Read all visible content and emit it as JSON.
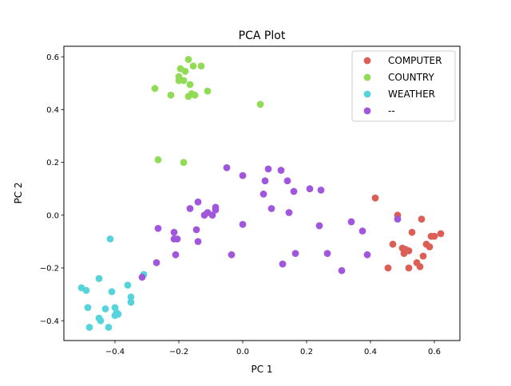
{
  "chart_data": {
    "type": "scatter",
    "title": "PCA Plot",
    "xlabel": "PC 1",
    "ylabel": "PC 2",
    "xlim": [
      -0.56,
      0.68
    ],
    "ylim": [
      -0.475,
      0.64
    ],
    "xticks": [
      -0.4,
      -0.2,
      0.0,
      0.2,
      0.4,
      0.6
    ],
    "xtick_labels": [
      "−0.4",
      "−0.2",
      "0.0",
      "0.2",
      "0.4",
      "0.6"
    ],
    "yticks": [
      -0.4,
      -0.2,
      0.0,
      0.2,
      0.4,
      0.6
    ],
    "ytick_labels": [
      "−0.4",
      "−0.2",
      "0.0",
      "0.2",
      "0.4",
      "0.6"
    ],
    "grid": false,
    "legend_position": "top-right",
    "series": [
      {
        "name": "COMPUTER",
        "color": "#db5f57",
        "points": [
          [
            0.415,
            0.065
          ],
          [
            0.485,
            0.0
          ],
          [
            0.56,
            -0.015
          ],
          [
            0.47,
            -0.11
          ],
          [
            0.5,
            -0.125
          ],
          [
            0.505,
            -0.145
          ],
          [
            0.52,
            -0.135
          ],
          [
            0.53,
            -0.065
          ],
          [
            0.575,
            -0.11
          ],
          [
            0.585,
            -0.12
          ],
          [
            0.59,
            -0.08
          ],
          [
            0.6,
            -0.08
          ],
          [
            0.62,
            -0.07
          ],
          [
            0.565,
            -0.155
          ],
          [
            0.545,
            -0.18
          ],
          [
            0.555,
            -0.195
          ],
          [
            0.52,
            -0.2
          ],
          [
            0.455,
            -0.2
          ],
          [
            0.51,
            -0.13
          ]
        ]
      },
      {
        "name": "COUNTRY",
        "color": "#91db57",
        "points": [
          [
            -0.17,
            0.59
          ],
          [
            -0.155,
            0.565
          ],
          [
            -0.13,
            0.565
          ],
          [
            -0.195,
            0.555
          ],
          [
            -0.18,
            0.545
          ],
          [
            -0.2,
            0.525
          ],
          [
            -0.2,
            0.51
          ],
          [
            -0.185,
            0.51
          ],
          [
            -0.165,
            0.495
          ],
          [
            -0.275,
            0.48
          ],
          [
            -0.11,
            0.47
          ],
          [
            -0.16,
            0.46
          ],
          [
            -0.15,
            0.455
          ],
          [
            -0.17,
            0.45
          ],
          [
            -0.225,
            0.455
          ],
          [
            0.055,
            0.42
          ],
          [
            -0.265,
            0.21
          ],
          [
            -0.185,
            0.2
          ]
        ]
      },
      {
        "name": "WEATHER",
        "color": "#57d3db",
        "points": [
          [
            -0.415,
            -0.09
          ],
          [
            -0.31,
            -0.225
          ],
          [
            -0.45,
            -0.24
          ],
          [
            -0.36,
            -0.265
          ],
          [
            -0.505,
            -0.275
          ],
          [
            -0.49,
            -0.285
          ],
          [
            -0.41,
            -0.29
          ],
          [
            -0.35,
            -0.31
          ],
          [
            -0.35,
            -0.33
          ],
          [
            -0.485,
            -0.35
          ],
          [
            -0.43,
            -0.355
          ],
          [
            -0.4,
            -0.35
          ],
          [
            -0.395,
            -0.37
          ],
          [
            -0.39,
            -0.375
          ],
          [
            -0.4,
            -0.38
          ],
          [
            -0.45,
            -0.39
          ],
          [
            -0.445,
            -0.4
          ],
          [
            -0.48,
            -0.425
          ],
          [
            -0.42,
            -0.425
          ]
        ]
      },
      {
        "name": "--",
        "color": "#a157db",
        "points": [
          [
            -0.05,
            0.18
          ],
          [
            0.0,
            0.15
          ],
          [
            0.08,
            0.175
          ],
          [
            0.12,
            0.17
          ],
          [
            0.07,
            0.13
          ],
          [
            0.14,
            0.13
          ],
          [
            0.21,
            0.1
          ],
          [
            0.245,
            0.095
          ],
          [
            0.16,
            0.09
          ],
          [
            0.065,
            0.08
          ],
          [
            -0.14,
            0.05
          ],
          [
            -0.085,
            0.03
          ],
          [
            -0.165,
            0.025
          ],
          [
            0.09,
            0.025
          ],
          [
            -0.085,
            0.02
          ],
          [
            -0.11,
            0.01
          ],
          [
            -0.095,
            0.0
          ],
          [
            -0.12,
            0.0
          ],
          [
            0.145,
            0.01
          ],
          [
            0.34,
            -0.025
          ],
          [
            0.0,
            -0.035
          ],
          [
            0.24,
            -0.04
          ],
          [
            -0.265,
            -0.05
          ],
          [
            -0.145,
            -0.055
          ],
          [
            -0.215,
            -0.065
          ],
          [
            0.375,
            -0.06
          ],
          [
            -0.215,
            -0.09
          ],
          [
            -0.205,
            -0.09
          ],
          [
            -0.14,
            -0.1
          ],
          [
            -0.27,
            -0.18
          ],
          [
            -0.035,
            -0.15
          ],
          [
            -0.21,
            -0.15
          ],
          [
            0.165,
            -0.145
          ],
          [
            0.265,
            -0.145
          ],
          [
            0.39,
            -0.15
          ],
          [
            0.125,
            -0.185
          ],
          [
            0.31,
            -0.21
          ],
          [
            -0.315,
            -0.235
          ],
          [
            0.485,
            -0.015
          ]
        ]
      }
    ]
  }
}
